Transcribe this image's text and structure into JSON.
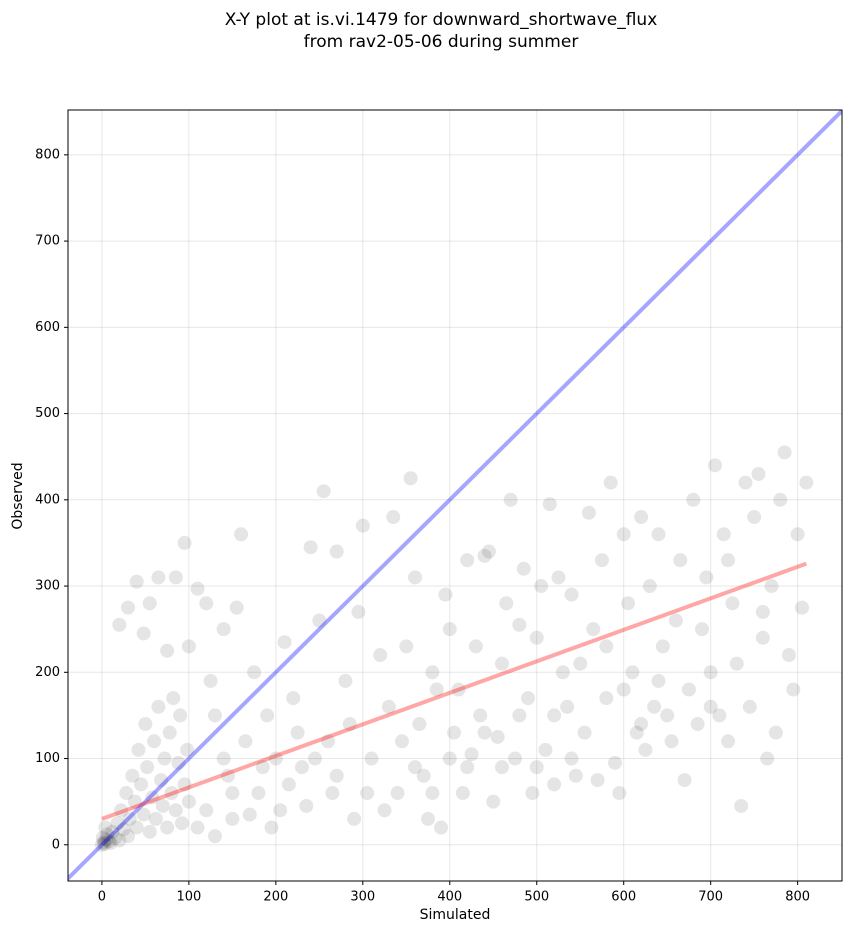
{
  "chart_data": {
    "type": "scatter",
    "title": [
      "X-Y plot at is.vi.1479 for downward_shortwave_flux",
      "from rav2-05-06 during summer"
    ],
    "xlabel": "Simulated",
    "ylabel": "Observed",
    "xlim": [
      -39,
      851
    ],
    "ylim": [
      -42,
      852
    ],
    "xticks": [
      0,
      100,
      200,
      300,
      400,
      500,
      600,
      700,
      800
    ],
    "yticks": [
      0,
      100,
      200,
      300,
      400,
      500,
      600,
      700,
      800
    ],
    "grid": true,
    "color": "#000000",
    "x": [
      0,
      2,
      3,
      5,
      1,
      8,
      6,
      10,
      12,
      4,
      15,
      18,
      20,
      22,
      25,
      28,
      30,
      32,
      35,
      38,
      40,
      42,
      45,
      48,
      50,
      52,
      55,
      58,
      60,
      62,
      65,
      68,
      70,
      72,
      75,
      78,
      80,
      82,
      85,
      88,
      90,
      92,
      95,
      98,
      100,
      20,
      40,
      55,
      65,
      85,
      95,
      30,
      48,
      75,
      100,
      110,
      120,
      125,
      140,
      155,
      160,
      130,
      145,
      150,
      165,
      175,
      180,
      190,
      200,
      205,
      210,
      220,
      230,
      240,
      250,
      255,
      260,
      265,
      270,
      280,
      290,
      295,
      300,
      310,
      320,
      330,
      335,
      340,
      350,
      355,
      360,
      365,
      370,
      375,
      380,
      385,
      390,
      395,
      400,
      405,
      410,
      415,
      420,
      425,
      430,
      435,
      440,
      445,
      450,
      455,
      460,
      465,
      470,
      475,
      480,
      485,
      490,
      495,
      500,
      505,
      510,
      515,
      520,
      525,
      530,
      535,
      540,
      545,
      550,
      555,
      560,
      565,
      570,
      575,
      580,
      585,
      590,
      595,
      600,
      605,
      610,
      615,
      620,
      625,
      630,
      635,
      640,
      645,
      650,
      655,
      660,
      665,
      670,
      675,
      680,
      685,
      690,
      695,
      700,
      705,
      710,
      715,
      720,
      725,
      730,
      735,
      740,
      745,
      750,
      755,
      760,
      765,
      770,
      775,
      780,
      785,
      790,
      795,
      800,
      805,
      810,
      110,
      120,
      130,
      140,
      150,
      170,
      185,
      195,
      215,
      225,
      235,
      245,
      270,
      285,
      305,
      325,
      345,
      360,
      380,
      400,
      420,
      440,
      460,
      480,
      500,
      520,
      540,
      580,
      600,
      620,
      640,
      700,
      720,
      760
    ],
    "y": [
      0,
      3,
      1,
      6,
      8,
      4,
      12,
      2,
      15,
      20,
      8,
      25,
      5,
      40,
      18,
      60,
      10,
      30,
      80,
      50,
      20,
      110,
      70,
      35,
      140,
      90,
      15,
      55,
      120,
      30,
      160,
      75,
      45,
      100,
      20,
      130,
      60,
      170,
      40,
      95,
      150,
      25,
      70,
      110,
      50,
      255,
      305,
      280,
      310,
      310,
      350,
      275,
      245,
      225,
      230,
      297,
      280,
      190,
      250,
      275,
      360,
      150,
      80,
      30,
      120,
      200,
      60,
      150,
      100,
      40,
      235,
      170,
      90,
      345,
      260,
      410,
      120,
      60,
      340,
      190,
      30,
      270,
      370,
      100,
      220,
      160,
      380,
      60,
      230,
      425,
      310,
      140,
      80,
      30,
      200,
      180,
      20,
      290,
      250,
      130,
      180,
      60,
      330,
      105,
      230,
      150,
      335,
      340,
      50,
      125,
      210,
      280,
      400,
      100,
      255,
      320,
      170,
      60,
      240,
      300,
      110,
      395,
      70,
      310,
      200,
      160,
      290,
      80,
      210,
      130,
      385,
      250,
      75,
      330,
      170,
      420,
      95,
      60,
      360,
      280,
      200,
      130,
      380,
      110,
      300,
      160,
      360,
      230,
      150,
      120,
      260,
      330,
      75,
      180,
      400,
      140,
      250,
      310,
      200,
      440,
      150,
      360,
      120,
      280,
      210,
      45,
      420,
      160,
      380,
      430,
      240,
      100,
      300,
      130,
      400,
      455,
      220,
      180,
      360,
      275,
      420,
      20,
      40,
      10,
      100,
      60,
      35,
      90,
      20,
      70,
      130,
      45,
      100,
      80,
      140,
      60,
      40,
      120,
      90,
      60,
      100,
      90,
      130,
      90,
      150,
      90,
      150,
      100,
      230,
      180,
      140,
      190,
      160,
      330,
      270
    ],
    "lines": [
      {
        "color": "#0000ff",
        "x": [
          -40,
          852
        ],
        "y": [
          -40,
          852
        ]
      },
      {
        "color": "#ff0000",
        "x": [
          0,
          810
        ],
        "y": [
          30,
          326
        ]
      }
    ]
  }
}
